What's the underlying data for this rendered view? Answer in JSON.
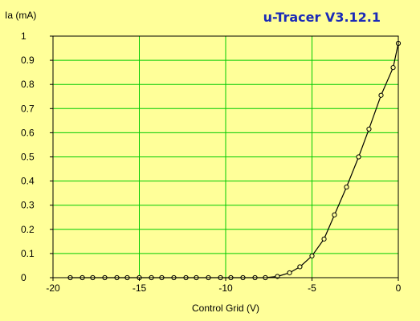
{
  "app": {
    "title": "u-Tracer V3.12.1"
  },
  "chart_data": {
    "type": "line",
    "title": "",
    "xlabel": "Control Grid (V)",
    "ylabel": "Ia (mA)",
    "xlim": [
      -20,
      0
    ],
    "ylim": [
      0,
      1
    ],
    "x_ticks": [
      -20,
      -15,
      -10,
      -5,
      0
    ],
    "y_ticks": [
      0,
      0.1,
      0.2,
      0.3,
      0.4,
      0.5,
      0.6,
      0.7,
      0.8,
      0.9,
      1
    ],
    "grid": true,
    "legend": "none",
    "colors": {
      "background": "#ffff99",
      "plot_background": "#ffff99",
      "grid": "#00cc00",
      "series": "#000000",
      "frame": "#000000",
      "title": "#1a2ab8"
    },
    "series": [
      {
        "x": [
          -19,
          -18.3,
          -17.7,
          -17,
          -16.3,
          -15.7,
          -15,
          -14.3,
          -13.7,
          -13,
          -12.3,
          -11.7,
          -11,
          -10.3,
          -9.7,
          -9,
          -8.3,
          -7.7,
          -7,
          -6.3,
          -5.7,
          -5,
          -4.3,
          -3.7,
          -3,
          -2.3,
          -1.7,
          -1,
          -0.3,
          0
        ],
        "y": [
          0,
          0,
          0,
          0,
          0,
          0,
          0,
          0,
          0,
          0,
          0,
          0,
          0,
          0,
          0,
          0,
          0,
          0,
          0.005,
          0.02,
          0.045,
          0.09,
          0.16,
          0.26,
          0.375,
          0.5,
          0.615,
          0.755,
          0.87,
          0.97
        ]
      }
    ]
  }
}
